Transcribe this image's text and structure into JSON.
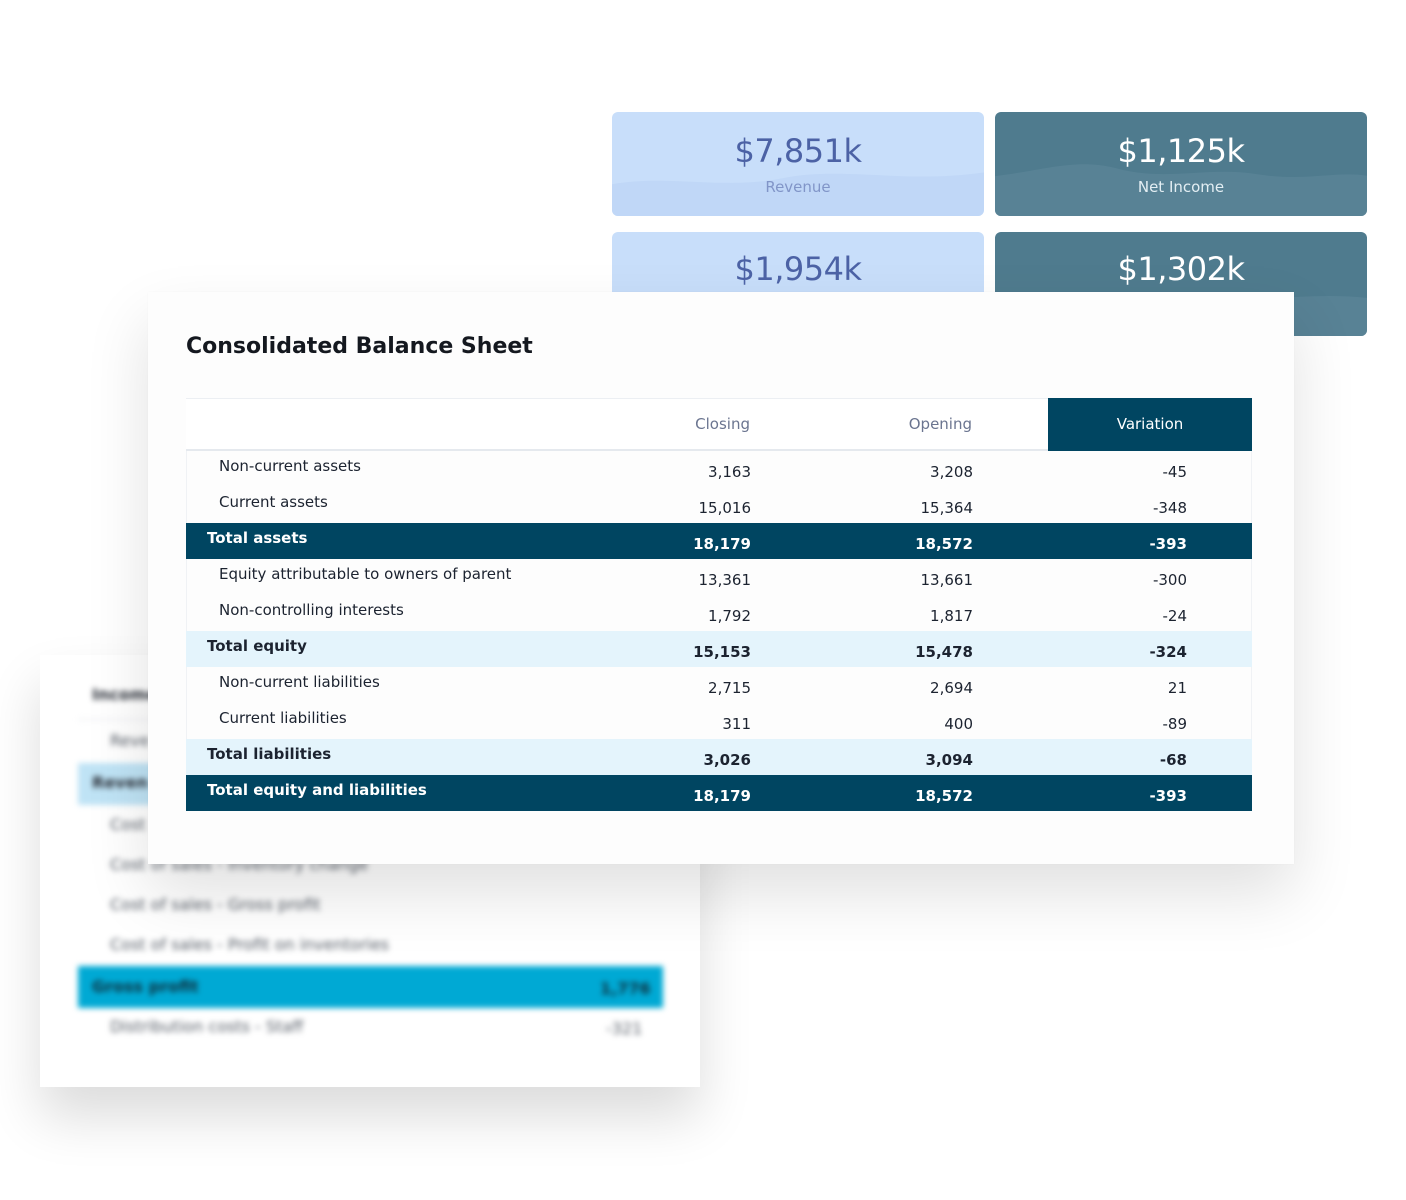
{
  "kpis": [
    {
      "value": "$7,851k",
      "label": "Revenue",
      "theme": "light"
    },
    {
      "value": "$1,125k",
      "label": "Net Income",
      "theme": "dark"
    },
    {
      "value": "$1,954k",
      "label": "",
      "theme": "light"
    },
    {
      "value": "$1,302k",
      "label": "",
      "theme": "dark"
    }
  ],
  "balance_sheet": {
    "title": "Consolidated Balance Sheet",
    "columns": {
      "closing": "Closing",
      "opening": "Opening",
      "variation": "Variation"
    },
    "rows": [
      {
        "label": "Non-current assets",
        "closing": "3,163",
        "opening": "3,208",
        "variation": "-45",
        "style": "sub"
      },
      {
        "label": "Current assets",
        "closing": "15,016",
        "opening": "15,364",
        "variation": "-348",
        "style": "sub"
      },
      {
        "label": "Total assets",
        "closing": "18,179",
        "opening": "18,572",
        "variation": "-393",
        "style": "total-dark"
      },
      {
        "label": "Equity attributable to owners of parent",
        "closing": "13,361",
        "opening": "13,661",
        "variation": "-300",
        "style": "sub"
      },
      {
        "label": "Non-controlling interests",
        "closing": "1,792",
        "opening": "1,817",
        "variation": "-24",
        "style": "sub"
      },
      {
        "label": "Total equity",
        "closing": "15,153",
        "opening": "15,478",
        "variation": "-324",
        "style": "total-light"
      },
      {
        "label": "Non-current liabilities",
        "closing": "2,715",
        "opening": "2,694",
        "variation": "21",
        "style": "sub"
      },
      {
        "label": "Current liabilities",
        "closing": "311",
        "opening": "400",
        "variation": "-89",
        "style": "sub"
      },
      {
        "label": "Total liabilities",
        "closing": "3,026",
        "opening": "3,094",
        "variation": "-68",
        "style": "total-light"
      },
      {
        "label": "Total equity and liabilities",
        "closing": "18,179",
        "opening": "18,572",
        "variation": "-393",
        "style": "total-dark"
      }
    ]
  },
  "income_statement_preview": {
    "title": "Income",
    "rows": [
      {
        "label": "Reve",
        "value": ""
      },
      {
        "label": "Reven",
        "value": ""
      },
      {
        "label": "Cost",
        "value": ""
      },
      {
        "label": "Cost of sales - Inventory change",
        "value": ""
      },
      {
        "label": "Cost of sales - Gross profit",
        "value": ""
      },
      {
        "label": "Cost of sales - Profit on inventories",
        "value": ""
      },
      {
        "label": "Gross profit",
        "value": "1,776"
      },
      {
        "label": "Distribution costs - Staff",
        "value": "-321"
      }
    ]
  },
  "colors": {
    "navy": "#004561",
    "light_blue_row": "#e4f4fc",
    "kpi_light": "#c8defa",
    "kpi_dark": "#4f7b8e",
    "cyan_highlight": "#00a9d4"
  }
}
